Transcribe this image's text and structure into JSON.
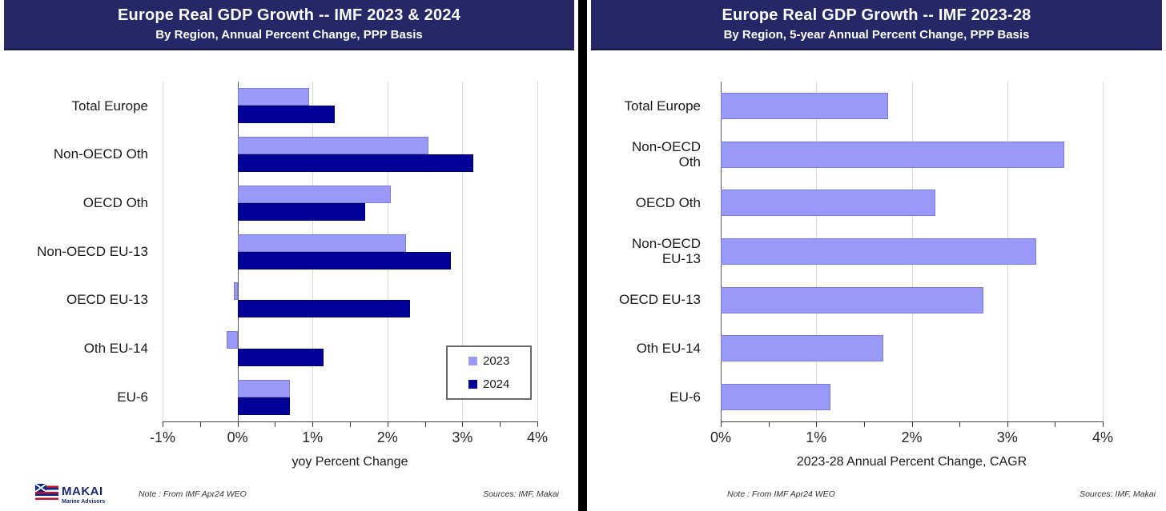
{
  "branding": {
    "logo_text": "MAKAI",
    "logo_tagline": "Marine Advisors"
  },
  "colors": {
    "header_bg": "#252766",
    "divider": "#000000",
    "bar_light": "#9999F7",
    "bar_dark": "#000099",
    "gridline": "#D9D9D9"
  },
  "chart_data": [
    {
      "type": "bar",
      "orientation": "horizontal",
      "title": "Europe Real GDP Growth -- IMF 2023 & 2024",
      "subtitle": "By Region, Annual Percent Change, PPP Basis",
      "categories": [
        "Total Europe",
        "Non-OECD Oth",
        "OECD Oth",
        "Non-OECD EU-13",
        "OECD EU-13",
        "Oth EU-14",
        "EU-6"
      ],
      "series": [
        {
          "name": "2023",
          "color": "#9999F7",
          "border_color": "#7B7BD8",
          "values": [
            0.95,
            2.55,
            2.05,
            2.25,
            -0.05,
            -0.15,
            0.7
          ]
        },
        {
          "name": "2024",
          "color": "#000099",
          "border_color": "#000066",
          "values": [
            1.3,
            3.15,
            1.7,
            2.85,
            2.3,
            1.15,
            0.7
          ]
        }
      ],
      "xlabel": "yoy Percent Change",
      "xlim": [
        -1,
        4
      ],
      "xticks": [
        "-1%",
        "0%",
        "1%",
        "2%",
        "3%",
        "4%"
      ],
      "grid": true,
      "legend_position": "inside-bottom-right",
      "note": "Note : From IMF Apr24 WEO",
      "sources": "Sources: IMF, Makai"
    },
    {
      "type": "bar",
      "orientation": "horizontal",
      "title": "Europe Real GDP Growth -- IMF 2023-28",
      "subtitle": "By Region, 5-year Annual Percent Change, PPP Basis",
      "categories": [
        "Total Europe",
        "Non-OECD Oth",
        "OECD Oth",
        "Non-OECD EU-13",
        "OECD EU-13",
        "Oth EU-14",
        "EU-6"
      ],
      "series": [
        {
          "name": "2023-28",
          "color": "#9999F7",
          "border_color": "#7B7BD8",
          "values": [
            1.75,
            3.6,
            2.25,
            3.3,
            2.75,
            1.7,
            1.15
          ]
        }
      ],
      "xlabel": "2023-28 Annual Percent Change, CAGR",
      "xlim": [
        0,
        4
      ],
      "xticks": [
        "0%",
        "1%",
        "2%",
        "3%",
        "4%"
      ],
      "grid": true,
      "legend_position": "none",
      "note": "Note : From IMF Apr24 WEO",
      "sources": "Sources: IMF, Makai"
    }
  ]
}
